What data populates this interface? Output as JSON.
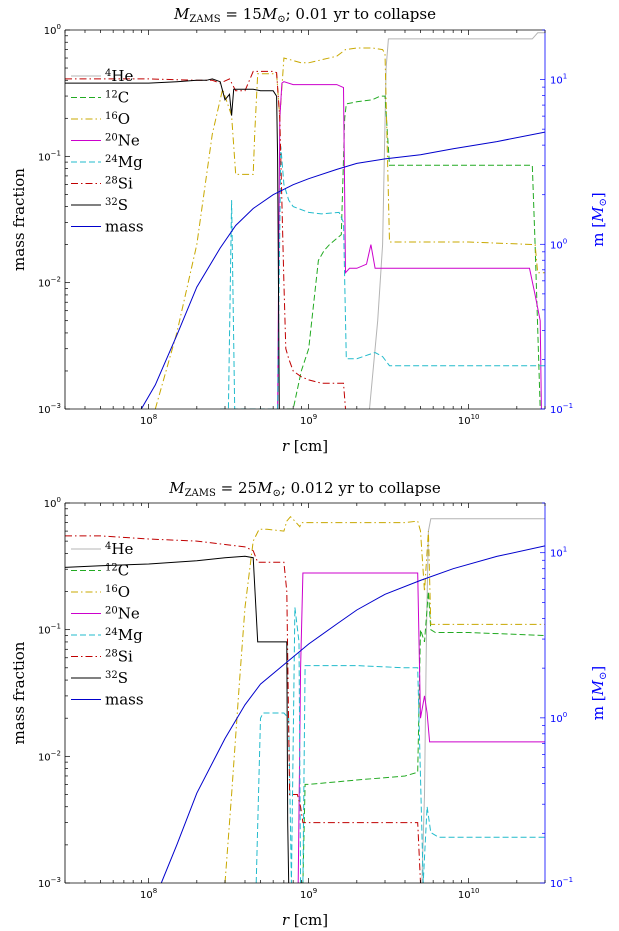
{
  "chart_data": [
    {
      "type": "line",
      "title": "M_ZAMS = 15M⊙; 0.01 yr to collapse",
      "title_parts": {
        "m": "M",
        "sub": "ZAMS",
        "eq": " = 15",
        "msun": "M",
        "rest": "; 0.01 yr to collapse"
      },
      "xlabel": "r [cm]",
      "ylabel": "mass fraction",
      "ylabel_right": "m [M⊙]",
      "x_scale": "log",
      "y_scale": "log",
      "xlim": [
        30000000.0,
        30000000000.0
      ],
      "ylim": [
        0.001,
        1
      ],
      "ylim_right": [
        0.1,
        20
      ],
      "x_ticks": [
        {
          "v": 100000000.0,
          "base": "10",
          "exp": "8"
        },
        {
          "v": 1000000000.0,
          "base": "10",
          "exp": "9"
        },
        {
          "v": 10000000000.0,
          "base": "10",
          "exp": "10"
        }
      ],
      "y_ticks": [
        {
          "v": 0.001,
          "base": "10",
          "exp": "−3"
        },
        {
          "v": 0.01,
          "base": "10",
          "exp": "−2"
        },
        {
          "v": 0.1,
          "base": "10",
          "exp": "−1"
        },
        {
          "v": 1,
          "base": "10",
          "exp": "0"
        }
      ],
      "y_ticks_right": [
        {
          "v": 0.1,
          "base": "10",
          "exp": "−1"
        },
        {
          "v": 1,
          "base": "10",
          "exp": "0"
        },
        {
          "v": 10,
          "base": "10",
          "exp": "1"
        }
      ],
      "legend_position": "left",
      "series": [
        {
          "name": "4He",
          "sup": "4",
          "el": "He",
          "color": "#b4b4b4",
          "dash": "",
          "axis": "left",
          "x": [
            2400000000.0,
            2700000000.0,
            2900000000.0,
            3050000000.0,
            3150000000.0,
            3400000000.0,
            10000000000.0,
            25000000000.0,
            27000000000.0,
            30000000000.0
          ],
          "y": [
            0.001,
            0.005,
            0.02,
            0.5,
            0.85,
            0.85,
            0.85,
            0.85,
            0.95,
            0.95
          ]
        },
        {
          "name": "12C",
          "sup": "12",
          "el": "C",
          "color": "#22aa22",
          "dash": "6,3",
          "axis": "left",
          "x": [
            730000000.0,
            760000000.0,
            800000000.0,
            900000000.0,
            1000000000.0,
            1150000000.0,
            1250000000.0,
            1350000000.0,
            1600000000.0,
            1680000000.0,
            1720000000.0,
            2000000000.0,
            2500000000.0,
            2800000000.0,
            3000000000.0,
            3200000000.0,
            25000000000.0,
            26000000000.0,
            28000000000.0
          ],
          "y": [
            0.001,
            0.001,
            0.001,
            0.002,
            0.003,
            0.015,
            0.018,
            0.02,
            0.024,
            0.2,
            0.26,
            0.27,
            0.28,
            0.3,
            0.3,
            0.085,
            0.085,
            0.02,
            0.001
          ]
        },
        {
          "name": "16O",
          "sup": "16",
          "el": "O",
          "color": "#c8a800",
          "dash": "7,3,1.5,3",
          "axis": "left",
          "x": [
            110000000.0,
            150000000.0,
            200000000.0,
            250000000.0,
            290000000.0,
            330000000.0,
            350000000.0,
            450000000.0,
            460000000.0,
            480000000.0,
            630000000.0,
            660000000.0,
            700000000.0,
            900000000.0,
            1000000000.0,
            1500000000.0,
            1700000000.0,
            2000000000.0,
            2500000000.0,
            2900000000.0,
            3000000000.0,
            3200000000.0,
            10000000000.0,
            26000000000.0,
            27000000000.0,
            30000000000.0
          ],
          "y": [
            0.001,
            0.004,
            0.02,
            0.15,
            0.34,
            0.21,
            0.072,
            0.072,
            0.15,
            0.45,
            0.45,
            0.2,
            0.6,
            0.55,
            0.55,
            0.62,
            0.7,
            0.72,
            0.72,
            0.7,
            0.65,
            0.021,
            0.021,
            0.02,
            0.012,
            0.012
          ]
        },
        {
          "name": "20Ne",
          "sup": "20",
          "el": "Ne",
          "color": "#cc00cc",
          "dash": "",
          "axis": "left",
          "x": [
            640000000.0,
            660000000.0,
            680000000.0,
            700000000.0,
            800000000.0,
            1000000000.0,
            1500000000.0,
            1650000000.0,
            1700000000.0,
            1800000000.0,
            2000000000.0,
            2300000000.0,
            2450000000.0,
            2600000000.0,
            3000000000.0,
            5000000000.0,
            10000000000.0,
            24000000000.0,
            26000000000.0,
            28000000000.0,
            28500000000.0
          ],
          "y": [
            0.001,
            0.2,
            0.38,
            0.39,
            0.37,
            0.37,
            0.37,
            0.35,
            0.012,
            0.013,
            0.013,
            0.014,
            0.02,
            0.013,
            0.013,
            0.013,
            0.013,
            0.013,
            0.008,
            0.005,
            0.001
          ]
        },
        {
          "name": "24Mg",
          "sup": "24",
          "el": "Mg",
          "color": "#22bbcc",
          "dash": "6,3",
          "axis": "left",
          "x": [
            280000000.0,
            300000000.0,
            315000000.0,
            330000000.0,
            345000000.0,
            360000000.0,
            450000000.0,
            550000000.0,
            600000000.0,
            640000000.0,
            670000000.0,
            700000000.0,
            750000000.0,
            800000000.0,
            1000000000.0,
            1200000000.0,
            1550000000.0,
            1650000000.0,
            1720000000.0,
            2000000000.0,
            2600000000.0,
            2900000000.0,
            3200000000.0,
            10000000000.0,
            30000000000.0
          ],
          "y": [
            0.001,
            0.001,
            0.001,
            0.045,
            0.001,
            0.001,
            0.001,
            0.001,
            0.001,
            0.001,
            0.12,
            0.06,
            0.045,
            0.04,
            0.036,
            0.035,
            0.036,
            0.03,
            0.0025,
            0.0025,
            0.0028,
            0.0026,
            0.0022,
            0.0022,
            0.0022
          ]
        },
        {
          "name": "28Si",
          "sup": "28",
          "el": "Si",
          "color": "#c00000",
          "dash": "7,3,1.5,3",
          "axis": "left",
          "x": [
            30000000.0,
            50000000.0,
            100000000.0,
            200000000.0,
            250000000.0,
            280000000.0,
            320000000.0,
            350000000.0,
            400000000.0,
            450000000.0,
            500000000.0,
            600000000.0,
            630000000.0,
            660000000.0,
            700000000.0,
            720000000.0,
            750000000.0,
            800000000.0,
            900000000.0,
            1000000000.0,
            1200000000.0,
            1500000000.0,
            1650000000.0,
            1700000000.0
          ],
          "y": [
            0.41,
            0.41,
            0.41,
            0.4,
            0.4,
            0.38,
            0.41,
            0.33,
            0.33,
            0.47,
            0.47,
            0.47,
            0.46,
            0.2,
            0.01,
            0.003,
            0.0025,
            0.002,
            0.0018,
            0.0017,
            0.0016,
            0.0016,
            0.0016,
            0.001
          ]
        },
        {
          "name": "32S",
          "sup": "32",
          "el": "S",
          "color": "#000000",
          "dash": "",
          "axis": "left",
          "x": [
            30000000.0,
            50000000.0,
            100000000.0,
            150000000.0,
            200000000.0,
            230000000.0,
            250000000.0,
            280000000.0,
            300000000.0,
            320000000.0,
            330000000.0,
            340000000.0,
            360000000.0,
            400000000.0,
            450000000.0,
            500000000.0,
            550000000.0,
            600000000.0,
            630000000.0,
            640000000.0,
            650000000.0,
            655000000.0
          ],
          "y": [
            0.38,
            0.38,
            0.38,
            0.39,
            0.4,
            0.4,
            0.41,
            0.39,
            0.28,
            0.31,
            0.21,
            0.34,
            0.34,
            0.34,
            0.34,
            0.33,
            0.33,
            0.33,
            0.3,
            0.1,
            0.005,
            0.001
          ]
        },
        {
          "name": "mass",
          "sup": "",
          "el": "mass",
          "color": "#0000cc",
          "dash": "",
          "axis": "right",
          "x": [
            90000000.0,
            110000000.0,
            150000000.0,
            200000000.0,
            280000000.0,
            350000000.0,
            450000000.0,
            600000000.0,
            800000000.0,
            1000000000.0,
            1500000000.0,
            2000000000.0,
            3000000000.0,
            5000000000.0,
            8000000000.0,
            15000000000.0,
            30000000000.0
          ],
          "y": [
            0.1,
            0.14,
            0.28,
            0.55,
            0.95,
            1.3,
            1.65,
            2.0,
            2.3,
            2.5,
            2.85,
            3.1,
            3.3,
            3.5,
            3.8,
            4.2,
            4.8
          ]
        }
      ]
    },
    {
      "type": "line",
      "title": "M_ZAMS = 25M⊙; 0.012 yr to collapse",
      "title_parts": {
        "m": "M",
        "sub": "ZAMS",
        "eq": " = 25",
        "msun": "M",
        "rest": "; 0.012 yr to collapse"
      },
      "xlabel": "r [cm]",
      "ylabel": "mass fraction",
      "ylabel_right": "m [M⊙]",
      "x_scale": "log",
      "y_scale": "log",
      "xlim": [
        30000000.0,
        30000000000.0
      ],
      "ylim": [
        0.001,
        1
      ],
      "ylim_right": [
        0.1,
        20
      ],
      "x_ticks": [
        {
          "v": 100000000.0,
          "base": "10",
          "exp": "8"
        },
        {
          "v": 1000000000.0,
          "base": "10",
          "exp": "9"
        },
        {
          "v": 10000000000.0,
          "base": "10",
          "exp": "10"
        }
      ],
      "y_ticks": [
        {
          "v": 0.001,
          "base": "10",
          "exp": "−3"
        },
        {
          "v": 0.01,
          "base": "10",
          "exp": "−2"
        },
        {
          "v": 0.1,
          "base": "10",
          "exp": "−1"
        },
        {
          "v": 1,
          "base": "10",
          "exp": "0"
        }
      ],
      "y_ticks_right": [
        {
          "v": 0.1,
          "base": "10",
          "exp": "−1"
        },
        {
          "v": 1,
          "base": "10",
          "exp": "0"
        },
        {
          "v": 10,
          "base": "10",
          "exp": "1"
        }
      ],
      "legend_position": "left",
      "series": [
        {
          "name": "4He",
          "sup": "4",
          "el": "He",
          "color": "#b4b4b4",
          "dash": "",
          "axis": "left",
          "x": [
            5100000000.0,
            5300000000.0,
            5450000000.0,
            5600000000.0,
            5800000000.0,
            10000000000.0,
            30000000000.0
          ],
          "y": [
            0.001,
            0.005,
            0.1,
            0.6,
            0.75,
            0.75,
            0.75
          ]
        },
        {
          "name": "12C",
          "sup": "12",
          "el": "C",
          "color": "#22aa22",
          "dash": "6,3",
          "axis": "left",
          "x": [
            880000000.0,
            920000000.0,
            950000000.0,
            1000000000.0,
            2000000000.0,
            4000000000.0,
            4800000000.0,
            5000000000.0,
            5300000000.0,
            5600000000.0,
            5800000000.0,
            6200000000.0,
            10000000000.0,
            30000000000.0
          ],
          "y": [
            0.001,
            0.001,
            0.006,
            0.006,
            0.0065,
            0.007,
            0.0075,
            0.1,
            0.08,
            0.2,
            0.1,
            0.095,
            0.095,
            0.09
          ]
        },
        {
          "name": "16O",
          "sup": "16",
          "el": "O",
          "color": "#c8a800",
          "dash": "7,3,1.5,3",
          "axis": "left",
          "x": [
            300000000.0,
            330000000.0,
            370000000.0,
            400000000.0,
            450000000.0,
            490000000.0,
            550000000.0,
            700000000.0,
            730000000.0,
            770000000.0,
            820000000.0,
            880000000.0,
            900000000.0,
            1000000000.0,
            2000000000.0,
            4000000000.0,
            4800000000.0,
            5000000000.0,
            5300000000.0,
            5600000000.0,
            5800000000.0,
            6200000000.0,
            10000000000.0,
            30000000000.0
          ],
          "y": [
            0.001,
            0.005,
            0.04,
            0.15,
            0.5,
            0.62,
            0.62,
            0.6,
            0.72,
            0.78,
            0.72,
            0.65,
            0.7,
            0.7,
            0.7,
            0.7,
            0.72,
            0.6,
            0.2,
            0.6,
            0.11,
            0.11,
            0.11,
            0.11
          ]
        },
        {
          "name": "20Ne",
          "sup": "20",
          "el": "Ne",
          "color": "#cc00cc",
          "dash": "",
          "axis": "left",
          "x": [
            860000000.0,
            890000000.0,
            920000000.0,
            950000000.0,
            1000000000.0,
            2000000000.0,
            4000000000.0,
            4800000000.0,
            5000000000.0,
            5300000000.0,
            5500000000.0,
            5700000000.0,
            5900000000.0,
            6200000000.0,
            10000000000.0,
            30000000000.0
          ],
          "y": [
            0.001,
            0.05,
            0.28,
            0.28,
            0.28,
            0.28,
            0.28,
            0.28,
            0.02,
            0.03,
            0.022,
            0.013,
            0.013,
            0.013,
            0.013,
            0.013
          ]
        },
        {
          "name": "24Mg",
          "sup": "24",
          "el": "Mg",
          "color": "#22bbcc",
          "dash": "6,3",
          "axis": "left",
          "x": [
            470000000.0,
            500000000.0,
            520000000.0,
            550000000.0,
            600000000.0,
            700000000.0,
            750000000.0,
            780000000.0,
            820000000.0,
            870000000.0,
            890000000.0,
            920000000.0,
            950000000.0,
            1000000000.0,
            2000000000.0,
            4000000000.0,
            4800000000.0,
            5200000000.0,
            5500000000.0,
            5800000000.0,
            6500000000.0,
            10000000000.0,
            30000000000.0
          ],
          "y": [
            0.001,
            0.02,
            0.022,
            0.022,
            0.022,
            0.022,
            0.02,
            0.001,
            0.15,
            0.08,
            0.001,
            0.001,
            0.052,
            0.052,
            0.052,
            0.05,
            0.05,
            0.001,
            0.004,
            0.0025,
            0.0023,
            0.0023,
            0.0023
          ]
        },
        {
          "name": "28Si",
          "sup": "28",
          "el": "Si",
          "color": "#c00000",
          "dash": "7,3,1.5,3",
          "axis": "left",
          "x": [
            30000000.0,
            50000000.0,
            100000000.0,
            200000000.0,
            300000000.0,
            400000000.0,
            450000000.0,
            480000000.0,
            500000000.0,
            700000000.0,
            730000000.0,
            760000000.0,
            800000000.0,
            850000000.0,
            890000000.0,
            920000000.0,
            950000000.0,
            1000000000.0,
            2000000000.0,
            4000000000.0,
            4800000000.0,
            5000000000.0
          ],
          "y": [
            0.55,
            0.55,
            0.52,
            0.5,
            0.47,
            0.45,
            0.42,
            0.34,
            0.34,
            0.34,
            0.2,
            0.005,
            0.005,
            0.005,
            0.004,
            0.003,
            0.003,
            0.003,
            0.003,
            0.003,
            0.003,
            0.001
          ]
        },
        {
          "name": "32S",
          "sup": "32",
          "el": "S",
          "color": "#000000",
          "dash": "",
          "axis": "left",
          "x": [
            30000000.0,
            50000000.0,
            100000000.0,
            200000000.0,
            300000000.0,
            400000000.0,
            450000000.0,
            480000000.0,
            500000000.0,
            600000000.0,
            700000000.0,
            730000000.0,
            740000000.0,
            750000000.0
          ],
          "y": [
            0.31,
            0.32,
            0.33,
            0.35,
            0.37,
            0.38,
            0.37,
            0.08,
            0.08,
            0.08,
            0.08,
            0.08,
            0.003,
            0.001
          ]
        },
        {
          "name": "mass",
          "sup": "",
          "el": "mass",
          "color": "#0000cc",
          "dash": "",
          "axis": "right",
          "x": [
            120000000.0,
            150000000.0,
            200000000.0,
            300000000.0,
            400000000.0,
            500000000.0,
            700000000.0,
            1000000000.0,
            1500000000.0,
            2000000000.0,
            3000000000.0,
            5000000000.0,
            8000000000.0,
            15000000000.0,
            30000000000.0
          ],
          "y": [
            0.1,
            0.17,
            0.35,
            0.75,
            1.2,
            1.6,
            2.1,
            2.8,
            3.7,
            4.5,
            5.6,
            6.8,
            8.0,
            9.5,
            11.0
          ]
        }
      ]
    }
  ]
}
